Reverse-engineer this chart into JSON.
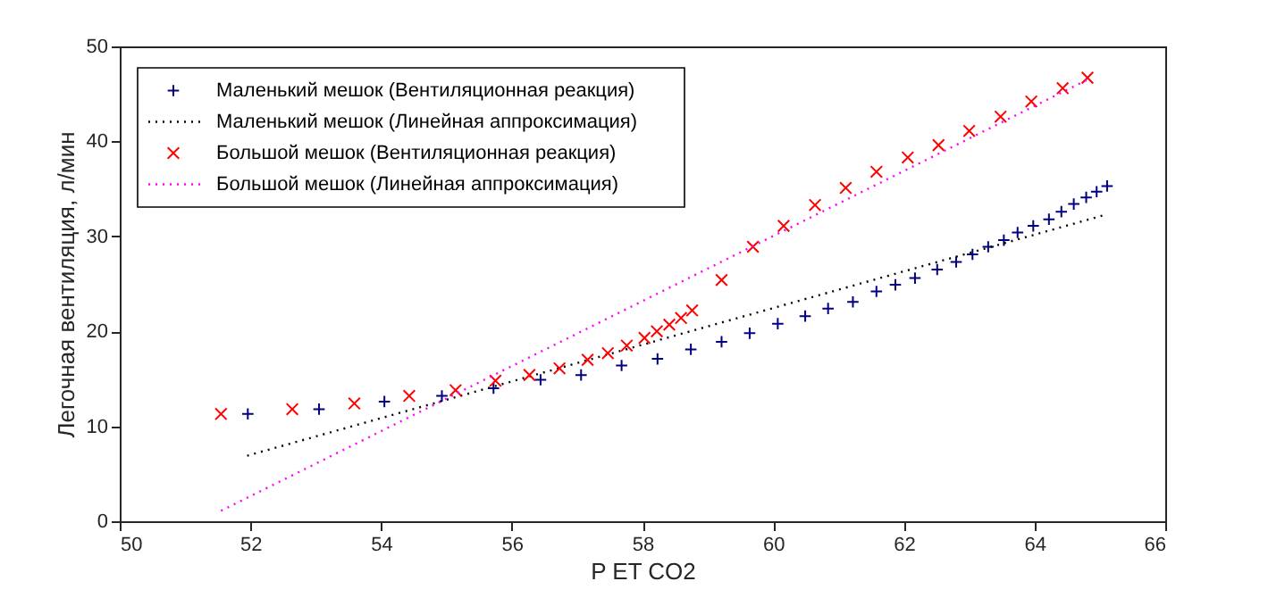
{
  "chart_data": {
    "type": "scatter",
    "xlabel": "P ET CO2",
    "ylabel": "Легочная вентиляция, л/мин",
    "xlim": [
      50,
      66
    ],
    "xticks": [
      50,
      52,
      54,
      56,
      58,
      60,
      62,
      64,
      66
    ],
    "ylim": [
      0,
      50
    ],
    "yticks": [
      0,
      10,
      20,
      30,
      40,
      50
    ],
    "grid": false,
    "legend": "top left",
    "series": [
      {
        "name": "Маленький мешок (Вентиляционная реакция)",
        "marker": "plus",
        "color": "#000080",
        "x": [
          51.96,
          53.05,
          54.05,
          54.93,
          55.72,
          56.44,
          57.06,
          57.68,
          58.23,
          58.74,
          59.21,
          59.64,
          60.07,
          60.49,
          60.84,
          61.22,
          61.58,
          61.87,
          62.17,
          62.51,
          62.8,
          63.05,
          63.29,
          63.53,
          63.74,
          63.98,
          64.22,
          64.41,
          64.6,
          64.79,
          64.95,
          65.11
        ],
        "values": [
          11.3,
          11.8,
          12.6,
          13.2,
          14.0,
          14.9,
          15.4,
          16.4,
          17.1,
          18.1,
          18.9,
          19.8,
          20.8,
          21.6,
          22.4,
          23.1,
          24.2,
          24.9,
          25.6,
          26.5,
          27.3,
          28.1,
          28.9,
          29.6,
          30.4,
          31.1,
          31.8,
          32.6,
          33.4,
          34.1,
          34.7,
          35.3
        ]
      },
      {
        "name": "Маленький мешок (Линейная аппроксимация)",
        "type": "line",
        "line_style": "dotted",
        "color": "#000000",
        "x": [
          51.95,
          65.1
        ],
        "values": [
          6.9,
          32.3
        ]
      },
      {
        "name": "Большой мешок (Вентиляционная реакция)",
        "marker": "cross",
        "color": "#ff0000",
        "x": [
          51.55,
          52.64,
          53.59,
          54.43,
          55.14,
          55.75,
          56.27,
          56.73,
          57.16,
          57.47,
          57.76,
          58.03,
          58.22,
          58.41,
          58.59,
          58.76,
          59.21,
          59.69,
          60.16,
          60.64,
          61.11,
          61.58,
          62.06,
          62.53,
          63.0,
          63.48,
          63.95,
          64.43,
          64.81
        ],
        "values": [
          11.3,
          11.8,
          12.4,
          13.2,
          13.8,
          14.8,
          15.4,
          16.1,
          17.0,
          17.7,
          18.5,
          19.3,
          20.0,
          20.7,
          21.4,
          22.2,
          25.4,
          28.9,
          31.1,
          33.3,
          35.1,
          36.8,
          38.3,
          39.6,
          41.1,
          42.6,
          44.2,
          45.6,
          46.7
        ]
      },
      {
        "name": "Большой мешок (Линейная аппроксимация)",
        "type": "line",
        "line_style": "dotted",
        "color": "#ff00ff",
        "x": [
          51.55,
          64.81
        ],
        "values": [
          1.1,
          46.5
        ]
      }
    ]
  }
}
